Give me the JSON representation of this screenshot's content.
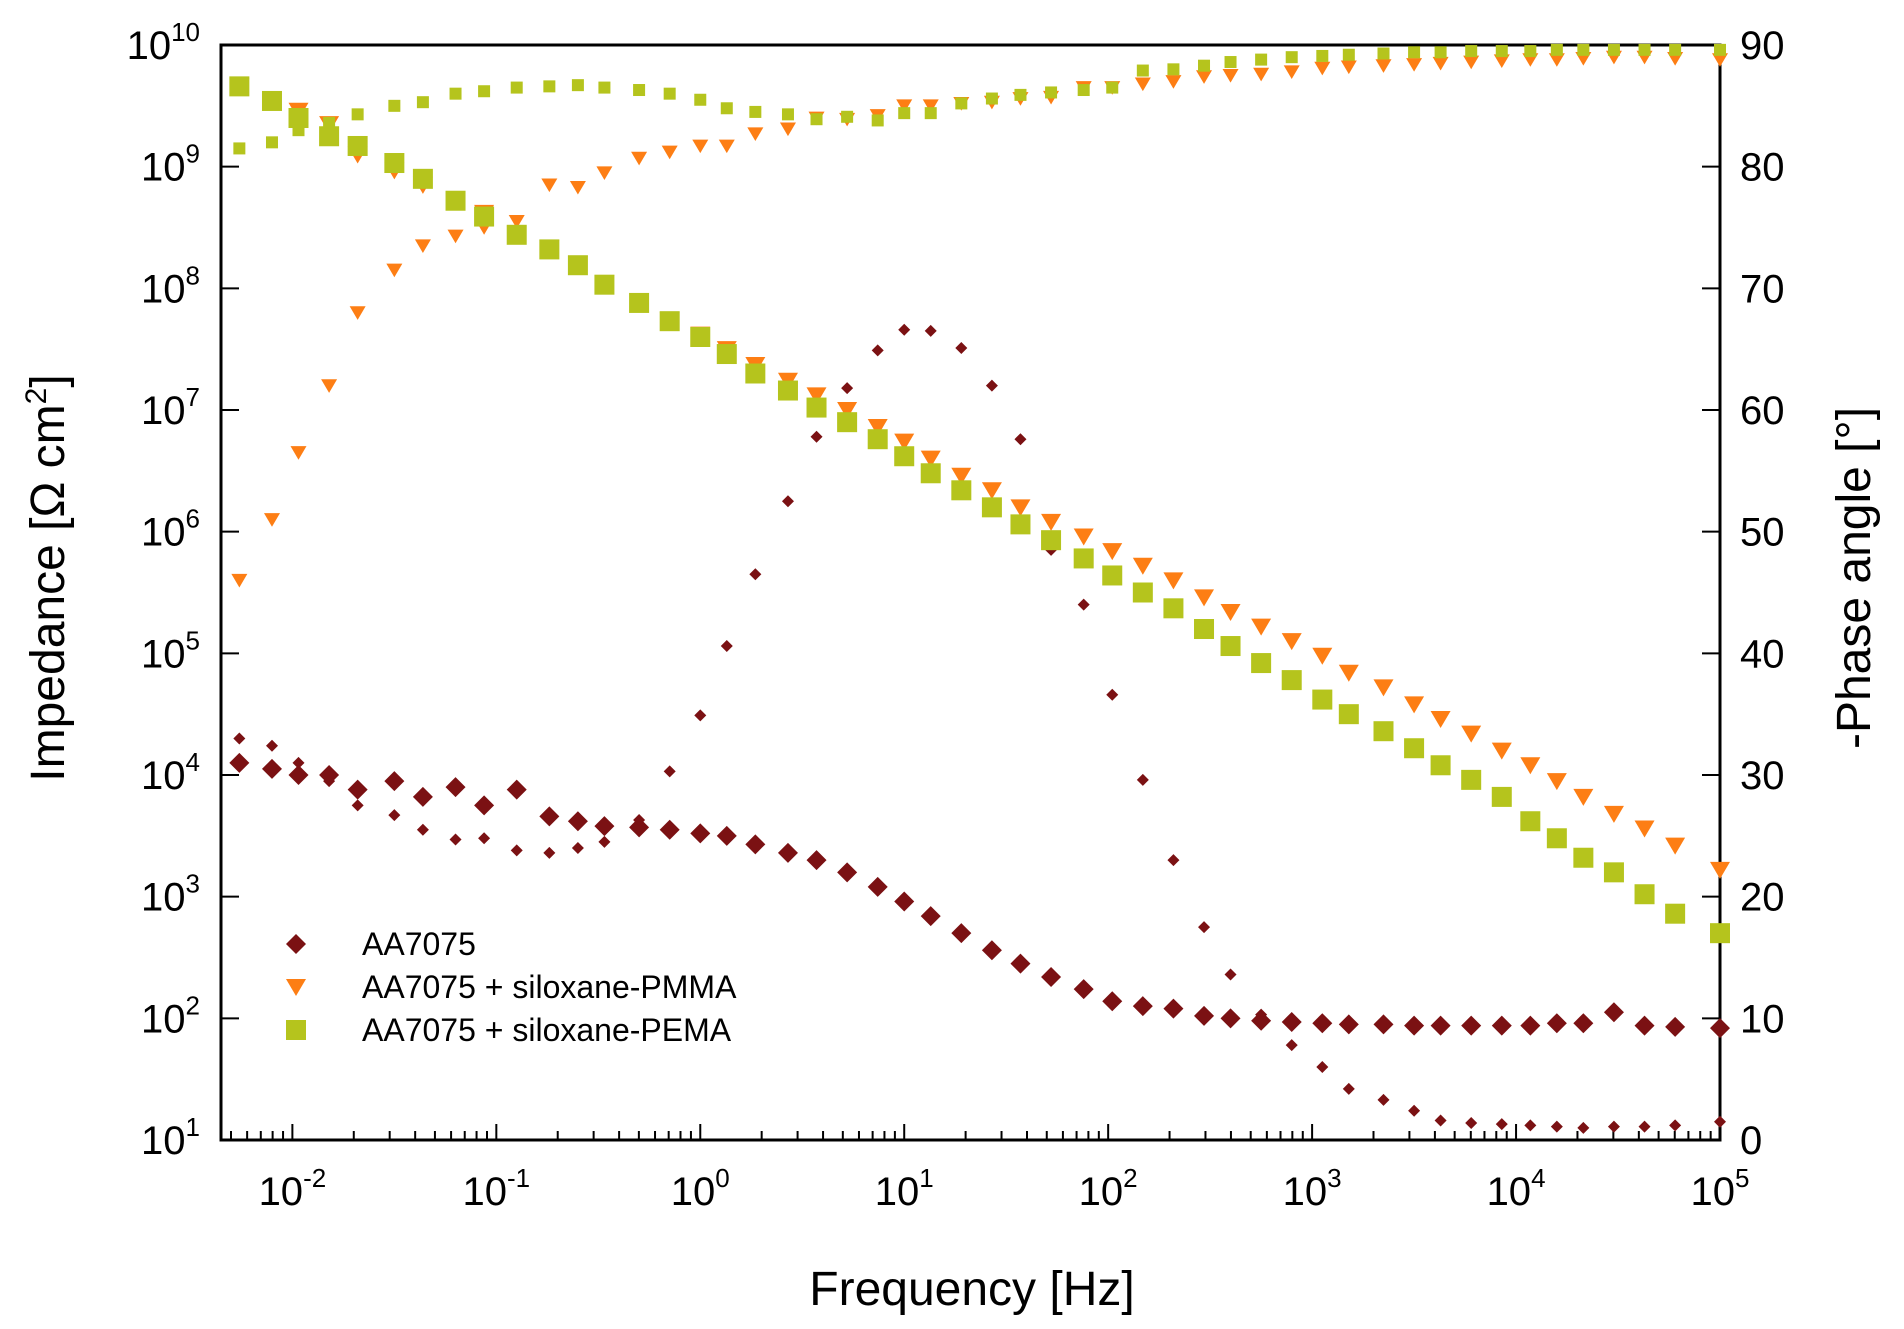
{
  "chart_data": {
    "type": "scatter",
    "x_scale": "log",
    "y_scale_left": "log",
    "xlabel": "Frequency [Hz]",
    "ylabel_left": "Impedance [Ω cm",
    "ylabel_left_sup": "2",
    "ylabel_left_tail": "]",
    "ylabel_right": "-Phase angle [°]",
    "xlim_exp": [
      -2.35,
      5
    ],
    "ylim_left_exp": [
      1,
      10
    ],
    "ylim_right": [
      0,
      90
    ],
    "x_ticks": [
      {
        "base": "10",
        "exp": "-2",
        "value": -2
      },
      {
        "base": "10",
        "exp": "-1",
        "value": -1
      },
      {
        "base": "10",
        "exp": "0",
        "value": 0
      },
      {
        "base": "10",
        "exp": "1",
        "value": 1
      },
      {
        "base": "10",
        "exp": "2",
        "value": 2
      },
      {
        "base": "10",
        "exp": "3",
        "value": 3
      },
      {
        "base": "10",
        "exp": "4",
        "value": 4
      },
      {
        "base": "10",
        "exp": "5",
        "value": 5
      }
    ],
    "y_left_ticks": [
      {
        "base": "10",
        "exp": "1",
        "value": 1
      },
      {
        "base": "10",
        "exp": "2",
        "value": 2
      },
      {
        "base": "10",
        "exp": "3",
        "value": 3
      },
      {
        "base": "10",
        "exp": "4",
        "value": 4
      },
      {
        "base": "10",
        "exp": "5",
        "value": 5
      },
      {
        "base": "10",
        "exp": "6",
        "value": 6
      },
      {
        "base": "10",
        "exp": "7",
        "value": 7
      },
      {
        "base": "10",
        "exp": "8",
        "value": 8
      },
      {
        "base": "10",
        "exp": "9",
        "value": 9
      },
      {
        "base": "10",
        "exp": "10",
        "value": 10
      }
    ],
    "y_right_ticks": [
      "0",
      "10",
      "20",
      "30",
      "40",
      "50",
      "60",
      "70",
      "80",
      "90"
    ],
    "legend": [
      {
        "label": "AA7075",
        "marker": "diamond",
        "color": "#7b1113"
      },
      {
        "label": "AA7075 + siloxane-PMMA",
        "marker": "triangle-down",
        "color": "#fd7e14"
      },
      {
        "label": "AA7075 + siloxane-PEMA",
        "marker": "square",
        "color": "#b5c41d"
      }
    ],
    "series": [
      {
        "name": "AA7075 |Z|",
        "axis": "left",
        "marker": "diamond",
        "size": "large",
        "color": "#7b1113",
        "x_log": [
          -2.26,
          -2.1,
          -1.97,
          -1.82,
          -1.68,
          -1.5,
          -1.36,
          -1.2,
          -1.06,
          -0.9,
          -0.74,
          -0.6,
          -0.47,
          -0.3,
          -0.15,
          0,
          0.13,
          0.27,
          0.43,
          0.57,
          0.72,
          0.87,
          1.0,
          1.13,
          1.28,
          1.43,
          1.57,
          1.72,
          1.88,
          2.02,
          2.17,
          2.32,
          2.47,
          2.6,
          2.75,
          2.9,
          3.05,
          3.18,
          3.35,
          3.5,
          3.63,
          3.78,
          3.93,
          4.07,
          4.2,
          4.33,
          4.48,
          4.63,
          4.78,
          5.0
        ],
        "y_log": [
          4.1,
          4.05,
          4.0,
          4.0,
          3.88,
          3.95,
          3.82,
          3.9,
          3.75,
          3.88,
          3.66,
          3.62,
          3.58,
          3.57,
          3.55,
          3.52,
          3.5,
          3.43,
          3.36,
          3.3,
          3.2,
          3.08,
          2.96,
          2.84,
          2.7,
          2.56,
          2.45,
          2.34,
          2.24,
          2.14,
          2.1,
          2.08,
          2.02,
          2.0,
          1.98,
          1.97,
          1.96,
          1.95,
          1.95,
          1.94,
          1.94,
          1.94,
          1.94,
          1.94,
          1.96,
          1.96,
          2.05,
          1.94,
          1.93,
          1.92
        ]
      },
      {
        "name": "AA7075 phase",
        "axis": "right",
        "marker": "diamond",
        "size": "small",
        "color": "#7b1113",
        "x_log": [
          -2.26,
          -2.1,
          -1.97,
          -1.82,
          -1.68,
          -1.5,
          -1.36,
          -1.2,
          -1.06,
          -0.9,
          -0.74,
          -0.6,
          -0.47,
          -0.3,
          -0.15,
          0,
          0.13,
          0.27,
          0.43,
          0.57,
          0.72,
          0.87,
          1.0,
          1.13,
          1.28,
          1.43,
          1.57,
          1.72,
          1.88,
          2.02,
          2.17,
          2.32,
          2.47,
          2.6,
          2.75,
          2.9,
          3.05,
          3.18,
          3.35,
          3.5,
          3.63,
          3.78,
          3.93,
          4.07,
          4.2,
          4.33,
          4.48,
          4.63,
          4.78,
          5.0
        ],
        "y": [
          33,
          32.4,
          31,
          29.5,
          27.5,
          26.7,
          25.5,
          24.7,
          24.8,
          23.8,
          23.6,
          24,
          24.5,
          26.3,
          30.3,
          34.9,
          40.6,
          46.5,
          52.5,
          57.8,
          61.8,
          64.9,
          66.6,
          66.5,
          65.1,
          62,
          57.6,
          48.5,
          44,
          36.6,
          29.6,
          23,
          17.5,
          13.6,
          10.3,
          7.8,
          6,
          4.2,
          3.3,
          2.4,
          1.6,
          1.4,
          1.3,
          1.2,
          1.1,
          1.0,
          1.1,
          1.1,
          1.2,
          1.5
        ]
      },
      {
        "name": "AA7075 + siloxane-PMMA |Z|",
        "axis": "left",
        "marker": "triangle-down",
        "size": "large",
        "color": "#fd7e14",
        "x_log": [
          -2.26,
          -2.1,
          -1.97,
          -1.82,
          -1.68,
          -1.5,
          -1.36,
          -1.2,
          -1.06,
          -0.9,
          -0.74,
          -0.6,
          -0.47,
          -0.3,
          -0.15,
          0,
          0.13,
          0.27,
          0.43,
          0.57,
          0.72,
          0.87,
          1.0,
          1.13,
          1.28,
          1.43,
          1.57,
          1.72,
          1.88,
          2.02,
          2.17,
          2.32,
          2.47,
          2.6,
          2.75,
          2.9,
          3.05,
          3.18,
          3.35,
          3.5,
          3.63,
          3.78,
          3.93,
          4.07,
          4.2,
          4.33,
          4.48,
          4.63,
          4.78,
          5.0
        ],
        "y_log": [
          9.66,
          9.55,
          9.46,
          9.35,
          9.1,
          8.97,
          8.85,
          8.72,
          8.62,
          8.44,
          8.33,
          8.2,
          8.04,
          7.89,
          7.74,
          7.62,
          7.5,
          7.37,
          7.24,
          7.12,
          7.0,
          6.86,
          6.74,
          6.6,
          6.46,
          6.34,
          6.2,
          6.08,
          5.96,
          5.84,
          5.72,
          5.6,
          5.46,
          5.34,
          5.22,
          5.1,
          4.98,
          4.84,
          4.72,
          4.58,
          4.46,
          4.34,
          4.2,
          4.08,
          3.95,
          3.82,
          3.68,
          3.56,
          3.42,
          3.22
        ]
      },
      {
        "name": "AA7075 + siloxane-PMMA phase",
        "axis": "right",
        "marker": "triangle-down",
        "size": "small",
        "color": "#fd7e14",
        "x_log": [
          -2.26,
          -2.1,
          -1.97,
          -1.82,
          -1.68,
          -1.5,
          -1.36,
          -1.2,
          -1.06,
          -0.9,
          -0.74,
          -0.6,
          -0.47,
          -0.3,
          -0.15,
          0,
          0.13,
          0.27,
          0.43,
          0.57,
          0.72,
          0.87,
          1.0,
          1.13,
          1.28,
          1.43,
          1.57,
          1.72,
          1.88,
          2.02,
          2.17,
          2.32,
          2.47,
          2.6,
          2.75,
          2.9,
          3.05,
          3.18,
          3.35,
          3.5,
          3.63,
          3.78,
          3.93,
          4.07,
          4.2,
          4.33,
          4.48,
          4.63,
          4.78,
          5.0
        ],
        "y": [
          46,
          51,
          56.5,
          62,
          68,
          71.5,
          73.5,
          74.3,
          75,
          75.5,
          78.5,
          78.3,
          79.5,
          80.7,
          81.2,
          81.7,
          81.7,
          82.7,
          83.1,
          84,
          83.9,
          84.2,
          85,
          85,
          85.2,
          85.3,
          85.6,
          85.7,
          86.5,
          86.5,
          86.8,
          87,
          87.4,
          87.5,
          87.6,
          87.8,
          88.1,
          88.2,
          88.3,
          88.4,
          88.5,
          88.6,
          88.7,
          88.8,
          88.8,
          88.9,
          89,
          89,
          88.9,
          88.8
        ]
      },
      {
        "name": "AA7075 + siloxane-PEMA |Z|",
        "axis": "left",
        "marker": "square",
        "size": "large",
        "color": "#b5c41d",
        "x_log": [
          -2.26,
          -2.1,
          -1.97,
          -1.82,
          -1.68,
          -1.5,
          -1.36,
          -1.2,
          -1.06,
          -0.9,
          -0.74,
          -0.6,
          -0.47,
          -0.3,
          -0.15,
          0,
          0.13,
          0.27,
          0.43,
          0.57,
          0.72,
          0.87,
          1.0,
          1.13,
          1.28,
          1.43,
          1.57,
          1.72,
          1.88,
          2.02,
          2.17,
          2.32,
          2.47,
          2.6,
          2.75,
          2.9,
          3.05,
          3.18,
          3.35,
          3.5,
          3.63,
          3.78,
          3.93,
          4.07,
          4.2,
          4.33,
          4.48,
          4.63,
          4.78,
          5.0
        ],
        "y_log": [
          9.66,
          9.54,
          9.4,
          9.25,
          9.17,
          9.03,
          8.9,
          8.72,
          8.59,
          8.44,
          8.32,
          8.19,
          8.03,
          7.88,
          7.73,
          7.6,
          7.46,
          7.3,
          7.16,
          7.02,
          6.9,
          6.76,
          6.62,
          6.48,
          6.34,
          6.2,
          6.06,
          5.93,
          5.78,
          5.64,
          5.5,
          5.37,
          5.2,
          5.06,
          4.92,
          4.78,
          4.62,
          4.5,
          4.36,
          4.22,
          4.08,
          3.96,
          3.82,
          3.62,
          3.48,
          3.32,
          3.2,
          3.02,
          2.86,
          2.7
        ]
      },
      {
        "name": "AA7075 + siloxane-PEMA phase",
        "axis": "right",
        "marker": "square",
        "size": "small",
        "color": "#b5c41d",
        "x_log": [
          -2.26,
          -2.1,
          -1.97,
          -1.82,
          -1.68,
          -1.5,
          -1.36,
          -1.2,
          -1.06,
          -0.9,
          -0.74,
          -0.6,
          -0.47,
          -0.3,
          -0.15,
          0,
          0.13,
          0.27,
          0.43,
          0.57,
          0.72,
          0.87,
          1.0,
          1.13,
          1.28,
          1.43,
          1.57,
          1.72,
          1.88,
          2.02,
          2.17,
          2.32,
          2.47,
          2.6,
          2.75,
          2.9,
          3.05,
          3.18,
          3.35,
          3.5,
          3.63,
          3.78,
          3.93,
          4.07,
          4.2,
          4.33,
          4.48,
          4.63,
          4.78,
          5.0
        ],
        "y": [
          81.5,
          82,
          83,
          83.6,
          84.3,
          85,
          85.3,
          86,
          86.2,
          86.5,
          86.6,
          86.7,
          86.5,
          86.3,
          86,
          85.5,
          84.8,
          84.5,
          84.3,
          83.9,
          84.1,
          83.8,
          84.4,
          84.4,
          85.2,
          85.6,
          85.9,
          86.1,
          86.3,
          86.5,
          87.9,
          88,
          88.3,
          88.6,
          88.8,
          89,
          89.1,
          89.2,
          89.3,
          89.4,
          89.4,
          89.5,
          89.5,
          89.5,
          89.6,
          89.6,
          89.6,
          89.6,
          89.6,
          89.6
        ]
      }
    ]
  }
}
